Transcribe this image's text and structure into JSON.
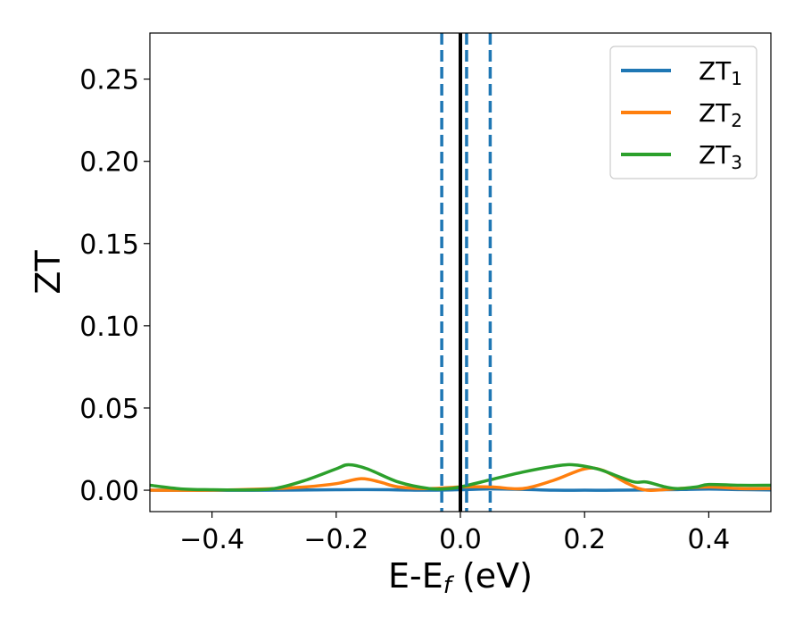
{
  "chart_data": {
    "type": "line",
    "title": "",
    "xlabel": {
      "main": "E-E",
      "sub": "f",
      "unit": " (eV)"
    },
    "ylabel": "ZT",
    "xlim": [
      -0.5,
      0.5
    ],
    "ylim": [
      -0.013,
      0.278
    ],
    "xticks": [
      -0.4,
      -0.2,
      0.0,
      0.2,
      0.4
    ],
    "xtick_labels": [
      "−0.4",
      "−0.2",
      "0.0",
      "0.2",
      "0.4"
    ],
    "yticks": [
      0.0,
      0.05,
      0.1,
      0.15,
      0.2,
      0.25
    ],
    "ytick_labels": [
      "0.00",
      "0.05",
      "0.10",
      "0.15",
      "0.20",
      "0.25"
    ],
    "grid": false,
    "legend_position": "top-right",
    "series": [
      {
        "name": "ZT",
        "sub": "1",
        "color": "#1f77b4",
        "x": [
          -0.5,
          -0.4,
          -0.3,
          -0.2,
          -0.15,
          -0.1,
          -0.05,
          0.0,
          0.05,
          0.1,
          0.15,
          0.2,
          0.25,
          0.3,
          0.35,
          0.4,
          0.45,
          0.5
        ],
        "y": [
          0.0,
          0.0,
          0.0,
          0.0003,
          0.0004,
          0.0002,
          0.0,
          0.0003,
          0.0008,
          0.0005,
          0.0,
          0.0,
          0.0,
          0.0002,
          0.0004,
          0.0007,
          0.0004,
          0.0002
        ]
      },
      {
        "name": "ZT",
        "sub": "2",
        "color": "#ff7f0e",
        "x": [
          -0.5,
          -0.4,
          -0.3,
          -0.25,
          -0.2,
          -0.16,
          -0.13,
          -0.1,
          -0.05,
          0.0,
          0.05,
          0.1,
          0.15,
          0.2,
          0.23,
          0.27,
          0.3,
          0.35,
          0.4,
          0.45,
          0.5
        ],
        "y": [
          0.0,
          0.0,
          0.001,
          0.002,
          0.004,
          0.007,
          0.005,
          0.002,
          0.001,
          0.002,
          0.002,
          0.001,
          0.006,
          0.013,
          0.012,
          0.004,
          0.0,
          0.001,
          0.002,
          0.001,
          0.001
        ]
      },
      {
        "name": "ZT",
        "sub": "3",
        "color": "#2ca02c",
        "x": [
          -0.5,
          -0.45,
          -0.4,
          -0.35,
          -0.3,
          -0.25,
          -0.2,
          -0.18,
          -0.15,
          -0.1,
          -0.05,
          -0.02,
          0.0,
          0.05,
          0.1,
          0.15,
          0.18,
          0.22,
          0.25,
          0.28,
          0.3,
          0.33,
          0.35,
          0.38,
          0.4,
          0.45,
          0.5
        ],
        "y": [
          0.003,
          0.0008,
          0.0003,
          0.0002,
          0.001,
          0.006,
          0.013,
          0.0155,
          0.013,
          0.005,
          0.001,
          0.001,
          0.002,
          0.0065,
          0.011,
          0.0145,
          0.0155,
          0.013,
          0.009,
          0.005,
          0.005,
          0.002,
          0.001,
          0.002,
          0.0035,
          0.003,
          0.003
        ]
      }
    ],
    "vertical_lines": [
      {
        "x": 0.0,
        "style": "solid",
        "color": "#000000"
      },
      {
        "x": -0.03,
        "style": "dashed",
        "color": "#1f77b4"
      },
      {
        "x": 0.01,
        "style": "dashed",
        "color": "#1f77b4"
      },
      {
        "x": 0.048,
        "style": "dashed",
        "color": "#1f77b4"
      }
    ]
  }
}
